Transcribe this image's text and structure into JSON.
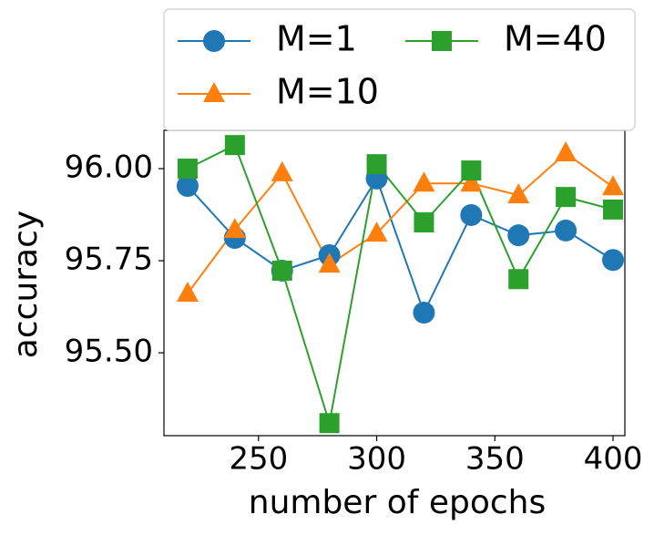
{
  "chart_data": {
    "type": "line",
    "xlabel": "number of epochs",
    "ylabel": "accuracy",
    "x": [
      220,
      240,
      260,
      280,
      300,
      320,
      340,
      360,
      380,
      400
    ],
    "series": [
      {
        "name": "M=1",
        "color": "#1f77b4",
        "marker": "circle",
        "values": [
          95.953,
          95.812,
          95.723,
          95.765,
          95.973,
          95.609,
          95.874,
          95.819,
          95.832,
          95.752
        ]
      },
      {
        "name": "M=10",
        "color": "#ff7f0e",
        "marker": "triangle",
        "values": [
          95.661,
          95.834,
          95.988,
          95.74,
          95.824,
          95.96,
          95.96,
          95.928,
          96.042,
          95.95
        ]
      },
      {
        "name": "M=40",
        "color": "#2ca02c",
        "marker": "square",
        "values": [
          96.0,
          96.064,
          95.723,
          95.309,
          96.012,
          95.854,
          95.995,
          95.7,
          95.923,
          95.889
        ]
      }
    ],
    "xlim": [
      210,
      405
    ],
    "xticks": [
      250,
      300,
      350,
      400
    ],
    "ylim": [
      95.275,
      96.104
    ],
    "yticks": [
      {
        "value": 95.5,
        "label": "95.50"
      },
      {
        "value": 95.75,
        "label": "95.75"
      },
      {
        "value": 96,
        "label": "96.00"
      }
    ],
    "grid": false,
    "legend": "top"
  }
}
